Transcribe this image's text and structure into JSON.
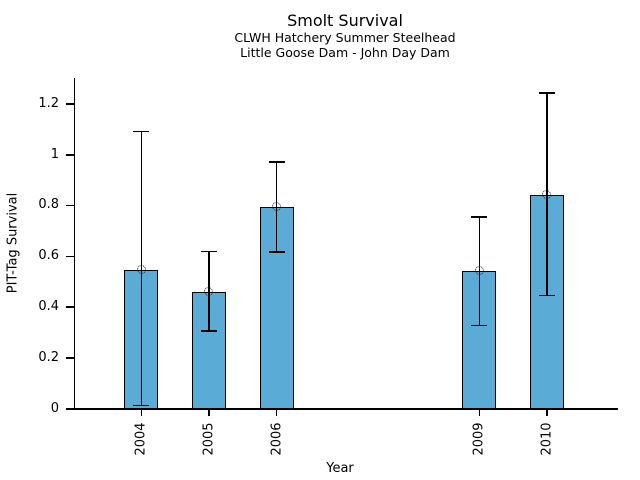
{
  "chart_data": {
    "type": "bar",
    "title": "Smolt Survival",
    "subtitle1": "CLWH Hatchery Summer Steelhead",
    "subtitle2": "Little Goose Dam - John Day Dam",
    "xlabel": "Year",
    "ylabel": "PIT-Tag Survival",
    "categories": [
      "2004",
      "2005",
      "2006",
      "2009",
      "2010"
    ],
    "x_years": [
      2004,
      2005,
      2006,
      2009,
      2010
    ],
    "values": [
      0.545,
      0.458,
      0.793,
      0.54,
      0.84
    ],
    "error_low": [
      0.01,
      0.303,
      0.615,
      0.325,
      0.443
    ],
    "error_high": [
      1.09,
      0.617,
      0.97,
      0.752,
      1.24
    ],
    "yticks": [
      0,
      0.2,
      0.4,
      0.6,
      0.8,
      1,
      1.2
    ],
    "ytick_labels": [
      "0",
      "0.2",
      "0.4",
      "0.6",
      "0.8",
      "1",
      "1.2"
    ],
    "ylim": [
      0,
      1.3
    ],
    "xlim": [
      2003.02,
      2011.05
    ],
    "bar_color": "#5aabd5",
    "edge_color": "#000000",
    "marker": "open-circle",
    "grid": "off",
    "legend": "none"
  }
}
